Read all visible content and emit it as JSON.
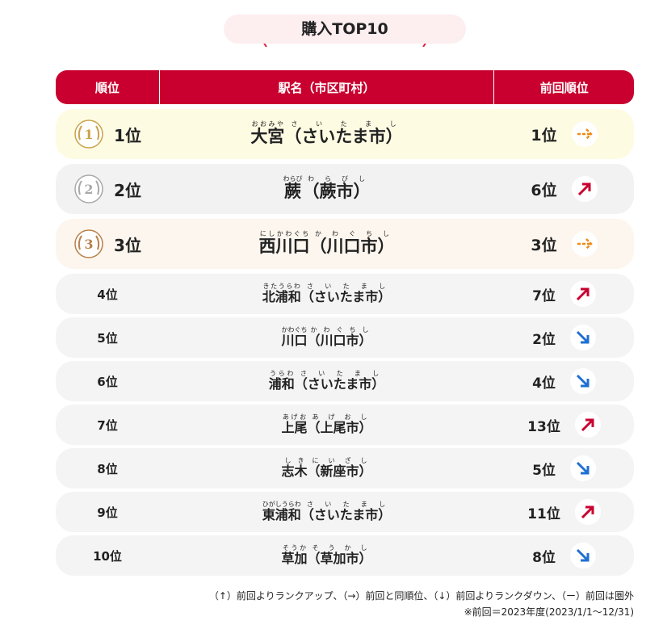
{
  "title": "購入TOP10",
  "table": {
    "headers": [
      "順位",
      "駅名（市区町村）",
      "前回順位"
    ],
    "rows": [
      {
        "medal": "1",
        "rank": "1位",
        "name": {
          "text": "大宮",
          "ruby": "おおみや"
        },
        "city": {
          "text": "（さいたま市）",
          "ruby": "さいたまし"
        },
        "previous": "1位",
        "trend": "same"
      },
      {
        "medal": "2",
        "rank": "2位",
        "name": {
          "text": "蕨",
          "ruby": "わらび"
        },
        "city": {
          "text": "（蕨市）",
          "ruby": "わらびし"
        },
        "previous": "6位",
        "trend": "up"
      },
      {
        "medal": "3",
        "rank": "3位",
        "name": {
          "text": "西川口",
          "ruby": "にしかわぐち"
        },
        "city": {
          "text": "（川口市）",
          "ruby": "かわぐちし"
        },
        "previous": "3位",
        "trend": "same"
      },
      {
        "rank": "4位",
        "name": {
          "text": "北浦和",
          "ruby": "きたうらわ"
        },
        "city": {
          "text": "（さいたま市）",
          "ruby": "さいたまし"
        },
        "previous": "7位",
        "trend": "up"
      },
      {
        "rank": "5位",
        "name": {
          "text": "川口",
          "ruby": "かわぐち"
        },
        "city": {
          "text": "（川口市）",
          "ruby": "かわぐちし"
        },
        "previous": "2位",
        "trend": "down"
      },
      {
        "rank": "6位",
        "name": {
          "text": "浦和",
          "ruby": "うらわ"
        },
        "city": {
          "text": "（さいたま市）",
          "ruby": "さいたまし"
        },
        "previous": "4位",
        "trend": "down"
      },
      {
        "rank": "7位",
        "name": {
          "text": "上尾",
          "ruby": "あげお"
        },
        "city": {
          "text": "（上尾市）",
          "ruby": "あげおし"
        },
        "previous": "13位",
        "trend": "up"
      },
      {
        "rank": "8位",
        "name": {
          "text": "志木",
          "ruby": "しき"
        },
        "city": {
          "text": "（新座市）",
          "ruby": "にいざし"
        },
        "previous": "5位",
        "trend": "down"
      },
      {
        "rank": "9位",
        "name": {
          "text": "東浦和",
          "ruby": "ひがしうらわ"
        },
        "city": {
          "text": "（さいたま市）",
          "ruby": "さいたまし"
        },
        "previous": "11位",
        "trend": "up"
      },
      {
        "rank": "10位",
        "name": {
          "text": "草加",
          "ruby": "そうか"
        },
        "city": {
          "text": "（草加市）",
          "ruby": "そうかし"
        },
        "previous": "8位",
        "trend": "down"
      }
    ]
  },
  "notes": [
    "（↑）前回よりランクアップ、（→）前回と同順位、（↓）前回よりランクダウン、（ー）前回は圏外",
    "※前回＝2023年度(2023/1/1〜12/31)"
  ]
}
